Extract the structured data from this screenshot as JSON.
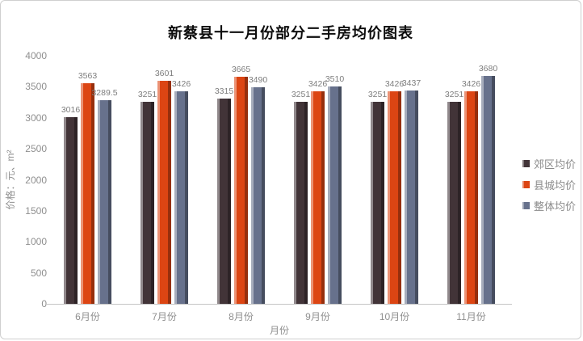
{
  "chart_data": {
    "type": "bar",
    "title": "新蔡县十一月份部分二手房均价图表",
    "categories": [
      "6月份",
      "7月份",
      "8月份",
      "9月份",
      "10月份",
      "11月份"
    ],
    "series": [
      {
        "name": "郊区均价",
        "color": "#423438",
        "values": [
          3016,
          3251,
          3315,
          3251,
          3251,
          3251
        ]
      },
      {
        "name": "县城均价",
        "color": "#DC4513",
        "values": [
          3563,
          3601,
          3665,
          3426,
          3426,
          3426
        ]
      },
      {
        "name": "整体均价",
        "color": "#67718C",
        "values": [
          3289.5,
          3426,
          3490,
          3510,
          3437,
          3680
        ]
      }
    ],
    "xlabel": "月份",
    "ylabel": "价格：元、m²",
    "ylim": [
      0,
      4000
    ],
    "ytick_step": 500,
    "grid": false,
    "legend_position": "right",
    "data_labels": true,
    "axis_line_color": "#c6c6c6",
    "tick_label_color": "#8f8f8f",
    "data_label_color": "#7d7d7d",
    "title_color": "#0d0d0d"
  }
}
